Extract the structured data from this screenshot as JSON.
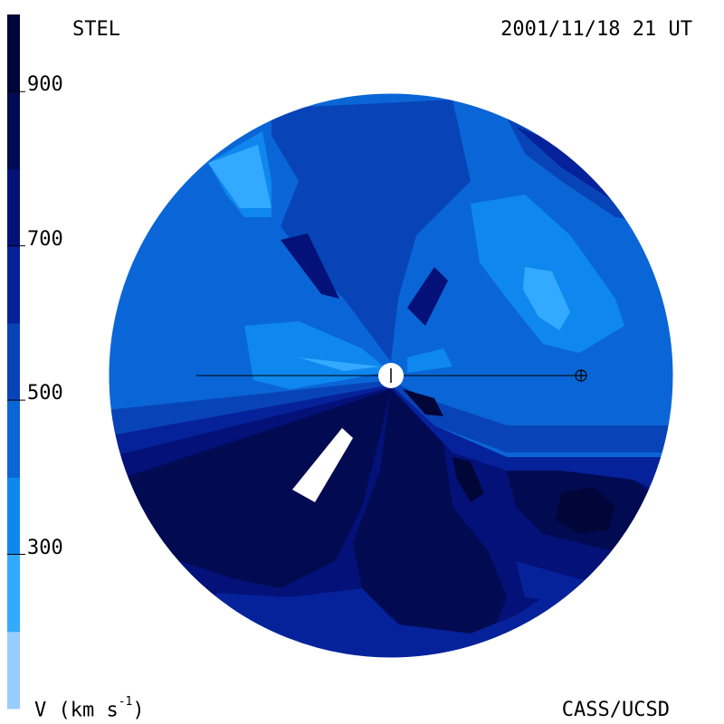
{
  "header": {
    "source": "STEL",
    "timestamp": "2001/11/18 21 UT"
  },
  "footer": {
    "credit": "CASS/UCSD",
    "unit_prefix": "V (km s",
    "unit_sup": "-1",
    "unit_suffix": ")"
  },
  "colorbar": {
    "range": [
      100,
      1000
    ],
    "ticks": [
      {
        "value": 900,
        "label": "900"
      },
      {
        "value": 700,
        "label": "700"
      },
      {
        "value": 500,
        "label": "500"
      },
      {
        "value": 300,
        "label": "300"
      }
    ],
    "bands": [
      {
        "from": 100,
        "to": 200,
        "color": "#99ccff"
      },
      {
        "from": 200,
        "to": 300,
        "color": "#33aaff"
      },
      {
        "from": 300,
        "to": 400,
        "color": "#0e88ee"
      },
      {
        "from": 400,
        "to": 500,
        "color": "#0a66d6"
      },
      {
        "from": 500,
        "to": 600,
        "color": "#0844b8"
      },
      {
        "from": 600,
        "to": 700,
        "color": "#06229a"
      },
      {
        "from": 700,
        "to": 800,
        "color": "#031178"
      },
      {
        "from": 800,
        "to": 900,
        "color": "#020a52"
      },
      {
        "from": 900,
        "to": 1000,
        "color": "#010638"
      }
    ]
  }
}
